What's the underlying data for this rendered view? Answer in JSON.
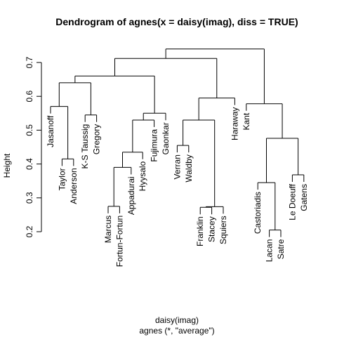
{
  "chart_data": {
    "type": "dendrogram",
    "title": "Dendrogram of  agnes(x = daisy(imag), diss = TRUE)",
    "xlabel": "daisy(imag)",
    "sublabel": "agnes (*, \"average\")",
    "ylabel": "Height",
    "ylim": [
      0.2,
      0.75
    ],
    "yticks": [
      "0.2",
      "0.3",
      "0.4",
      "0.5",
      "0.6",
      "0.7"
    ],
    "leaves": [
      {
        "label": "Jasanoff",
        "height": 0.57
      },
      {
        "label": "Taylor",
        "height": 0.415
      },
      {
        "label": "Anderson",
        "height": 0.415
      },
      {
        "label": "K-S Taussig",
        "height": 0.545
      },
      {
        "label": "Gregory",
        "height": 0.545
      },
      {
        "label": "Marcus",
        "height": 0.275
      },
      {
        "label": "Fortun-Fortun",
        "height": 0.275
      },
      {
        "label": "Appadurai",
        "height": 0.39
      },
      {
        "label": "Hyysalo",
        "height": 0.435
      },
      {
        "label": "Fujimura",
        "height": 0.53
      },
      {
        "label": "Gaonkar",
        "height": 0.55
      },
      {
        "label": "Verran",
        "height": 0.455
      },
      {
        "label": "Waldby",
        "height": 0.455
      },
      {
        "label": "Franklin",
        "height": 0.272
      },
      {
        "label": "Stacey",
        "height": 0.272
      },
      {
        "label": "Squiers",
        "height": 0.274
      },
      {
        "label": "Haraway",
        "height": 0.595
      },
      {
        "label": "Kant",
        "height": 0.578
      },
      {
        "label": "Castoriadis",
        "height": 0.345
      },
      {
        "label": "Lacan",
        "height": 0.205
      },
      {
        "label": "Satre",
        "height": 0.205
      },
      {
        "label": "Le Doeuff",
        "height": 0.368
      },
      {
        "label": "Gatens",
        "height": 0.368
      }
    ],
    "merges": [
      {
        "a": "Taylor",
        "b": "Anderson",
        "height": 0.415
      },
      {
        "a": "Jasanoff",
        "b": "c1",
        "height": 0.57
      },
      {
        "a": "K-S Taussig",
        "b": "Gregory",
        "height": 0.545
      },
      {
        "a": "c2",
        "b": "c3",
        "height": 0.64
      },
      {
        "a": "Marcus",
        "b": "Fortun-Fortun",
        "height": 0.275
      },
      {
        "a": "c5",
        "b": "Appadurai",
        "height": 0.39
      },
      {
        "a": "c6",
        "b": "Hyysalo",
        "height": 0.435
      },
      {
        "a": "c7",
        "b": "Fujimura",
        "height": 0.53
      },
      {
        "a": "c8",
        "b": "Gaonkar",
        "height": 0.55
      },
      {
        "a": "c4",
        "b": "c9",
        "height": 0.66
      },
      {
        "a": "Verran",
        "b": "Waldby",
        "height": 0.455
      },
      {
        "a": "Franklin",
        "b": "Stacey",
        "height": 0.272
      },
      {
        "a": "c12",
        "b": "Squiers",
        "height": 0.274
      },
      {
        "a": "c11",
        "b": "c13",
        "height": 0.53
      },
      {
        "a": "c14",
        "b": "Haraway",
        "height": 0.595
      },
      {
        "a": "c10",
        "b": "c15",
        "height": 0.712
      },
      {
        "a": "Lacan",
        "b": "Satre",
        "height": 0.205
      },
      {
        "a": "Castoriadis",
        "b": "c17",
        "height": 0.345
      },
      {
        "a": "Le Doeuff",
        "b": "Gatens",
        "height": 0.368
      },
      {
        "a": "c18",
        "b": "c19",
        "height": 0.476
      },
      {
        "a": "Kant",
        "b": "c20",
        "height": 0.578
      },
      {
        "a": "c16",
        "b": "c21",
        "height": 0.74
      }
    ]
  }
}
